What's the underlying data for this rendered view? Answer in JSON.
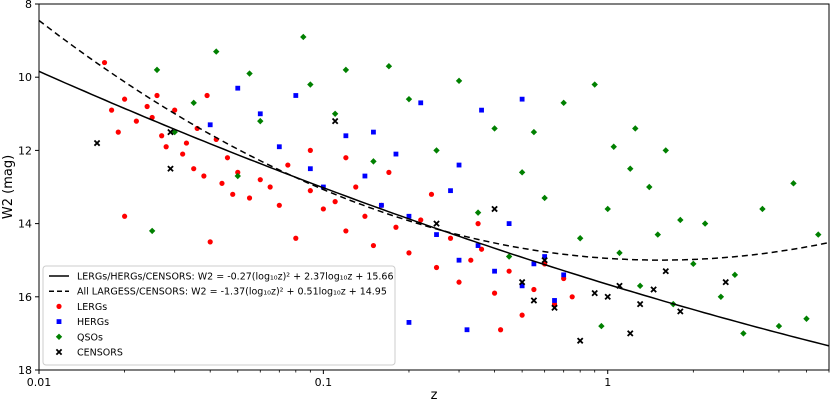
{
  "chart_data": {
    "type": "scatter",
    "title": "",
    "xlabel": "z",
    "ylabel": "W2 (mag)",
    "xscale": "log",
    "xlim": [
      0.01,
      6.0
    ],
    "ylim": [
      18,
      8
    ],
    "x_ticks": [
      {
        "value": 0.01,
        "label": "0.01"
      },
      {
        "value": 0.1,
        "label": "0.1"
      },
      {
        "value": 1,
        "label": "1"
      }
    ],
    "y_ticks": [
      {
        "value": 8,
        "label": "8"
      },
      {
        "value": 10,
        "label": "10"
      },
      {
        "value": 12,
        "label": "12"
      },
      {
        "value": 14,
        "label": "14"
      },
      {
        "value": 16,
        "label": "16"
      },
      {
        "value": 18,
        "label": "18"
      }
    ],
    "grid": false,
    "legend_position": "bottom-left",
    "fits": [
      {
        "name": "LERGs/HERGs/CENSORS: W2 = -0.27(log₁₀z)² + 2.37log₁₀z  + 15.66",
        "style": "solid",
        "a": -0.27,
        "b": 2.37,
        "c": 15.66,
        "color": "#000000"
      },
      {
        "name": "All LARGESS/CENSORS: W2 = -1.37(log₁₀z)² + 0.51log₁₀z  + 14.95",
        "style": "dashed",
        "a": -1.37,
        "b": 0.51,
        "c": 14.95,
        "color": "#000000"
      }
    ],
    "series": [
      {
        "name": "LERGs",
        "marker": "circle",
        "color": "#ff0000",
        "points": [
          [
            0.017,
            9.6
          ],
          [
            0.018,
            10.9
          ],
          [
            0.019,
            11.5
          ],
          [
            0.02,
            10.6
          ],
          [
            0.022,
            11.2
          ],
          [
            0.024,
            10.8
          ],
          [
            0.025,
            11.1
          ],
          [
            0.026,
            10.5
          ],
          [
            0.027,
            11.6
          ],
          [
            0.028,
            11.9
          ],
          [
            0.03,
            10.9
          ],
          [
            0.032,
            12.1
          ],
          [
            0.033,
            11.8
          ],
          [
            0.035,
            12.5
          ],
          [
            0.036,
            11.4
          ],
          [
            0.038,
            12.7
          ],
          [
            0.039,
            10.5
          ],
          [
            0.04,
            14.5
          ],
          [
            0.042,
            11.7
          ],
          [
            0.044,
            12.9
          ],
          [
            0.046,
            12.2
          ],
          [
            0.048,
            13.2
          ],
          [
            0.05,
            12.6
          ],
          [
            0.02,
            13.8
          ],
          [
            0.055,
            13.3
          ],
          [
            0.06,
            12.8
          ],
          [
            0.065,
            13.0
          ],
          [
            0.07,
            13.5
          ],
          [
            0.075,
            12.4
          ],
          [
            0.08,
            14.4
          ],
          [
            0.09,
            13.1
          ],
          [
            0.1,
            13.6
          ],
          [
            0.11,
            13.4
          ],
          [
            0.12,
            14.2
          ],
          [
            0.13,
            13.0
          ],
          [
            0.14,
            13.8
          ],
          [
            0.15,
            14.6
          ],
          [
            0.16,
            13.5
          ],
          [
            0.18,
            14.1
          ],
          [
            0.2,
            14.8
          ],
          [
            0.22,
            13.9
          ],
          [
            0.25,
            15.2
          ],
          [
            0.28,
            14.4
          ],
          [
            0.3,
            15.6
          ],
          [
            0.33,
            15.0
          ],
          [
            0.36,
            14.7
          ],
          [
            0.4,
            15.9
          ],
          [
            0.45,
            15.3
          ],
          [
            0.5,
            16.5
          ],
          [
            0.55,
            15.8
          ],
          [
            0.6,
            15.1
          ],
          [
            0.65,
            16.2
          ],
          [
            0.7,
            15.5
          ],
          [
            0.75,
            16.0
          ],
          [
            0.12,
            12.2
          ],
          [
            0.09,
            12.0
          ],
          [
            0.17,
            12.6
          ],
          [
            0.24,
            13.2
          ],
          [
            0.35,
            14.0
          ],
          [
            0.42,
            16.9
          ]
        ]
      },
      {
        "name": "HERGs",
        "marker": "square",
        "color": "#0000ff",
        "points": [
          [
            0.04,
            11.3
          ],
          [
            0.05,
            10.3
          ],
          [
            0.06,
            11.0
          ],
          [
            0.07,
            11.9
          ],
          [
            0.08,
            10.5
          ],
          [
            0.09,
            12.5
          ],
          [
            0.1,
            13.0
          ],
          [
            0.12,
            11.6
          ],
          [
            0.14,
            12.7
          ],
          [
            0.16,
            13.5
          ],
          [
            0.18,
            12.1
          ],
          [
            0.2,
            13.8
          ],
          [
            0.22,
            10.7
          ],
          [
            0.25,
            14.3
          ],
          [
            0.28,
            13.1
          ],
          [
            0.3,
            15.0
          ],
          [
            0.32,
            16.9
          ],
          [
            0.35,
            14.6
          ],
          [
            0.4,
            15.3
          ],
          [
            0.45,
            14.0
          ],
          [
            0.5,
            15.7
          ],
          [
            0.5,
            10.6
          ],
          [
            0.55,
            15.1
          ],
          [
            0.6,
            14.9
          ],
          [
            0.65,
            16.1
          ],
          [
            0.7,
            15.4
          ],
          [
            0.2,
            16.7
          ],
          [
            0.3,
            12.4
          ],
          [
            0.36,
            10.9
          ],
          [
            0.15,
            11.5
          ]
        ]
      },
      {
        "name": "QSOs",
        "marker": "diamond",
        "color": "#008000",
        "points": [
          [
            0.026,
            9.8
          ],
          [
            0.03,
            11.5
          ],
          [
            0.035,
            10.7
          ],
          [
            0.042,
            9.3
          ],
          [
            0.05,
            12.7
          ],
          [
            0.055,
            9.9
          ],
          [
            0.06,
            11.2
          ],
          [
            0.085,
            8.9
          ],
          [
            0.09,
            10.2
          ],
          [
            0.11,
            11.0
          ],
          [
            0.12,
            9.8
          ],
          [
            0.15,
            12.3
          ],
          [
            0.17,
            9.7
          ],
          [
            0.2,
            10.6
          ],
          [
            0.25,
            12.0
          ],
          [
            0.3,
            10.1
          ],
          [
            0.35,
            13.7
          ],
          [
            0.4,
            11.4
          ],
          [
            0.45,
            14.9
          ],
          [
            0.5,
            12.6
          ],
          [
            0.55,
            11.5
          ],
          [
            0.6,
            13.3
          ],
          [
            0.7,
            10.7
          ],
          [
            0.8,
            14.4
          ],
          [
            0.9,
            10.2
          ],
          [
            1.0,
            13.6
          ],
          [
            1.05,
            11.9
          ],
          [
            1.1,
            14.8
          ],
          [
            1.2,
            12.5
          ],
          [
            1.3,
            15.7
          ],
          [
            1.4,
            13.0
          ],
          [
            1.5,
            14.3
          ],
          [
            1.6,
            12.0
          ],
          [
            1.7,
            16.2
          ],
          [
            1.8,
            13.9
          ],
          [
            2.0,
            15.1
          ],
          [
            2.2,
            14.0
          ],
          [
            2.5,
            16.0
          ],
          [
            2.8,
            15.4
          ],
          [
            3.0,
            17.0
          ],
          [
            3.5,
            13.6
          ],
          [
            4.0,
            16.8
          ],
          [
            4.5,
            12.9
          ],
          [
            5.0,
            16.6
          ],
          [
            5.5,
            14.3
          ],
          [
            0.025,
            14.2
          ],
          [
            0.95,
            16.8
          ],
          [
            1.25,
            11.4
          ]
        ]
      },
      {
        "name": "CENSORS",
        "marker": "x",
        "color": "#000000",
        "points": [
          [
            0.016,
            11.8
          ],
          [
            0.029,
            11.5
          ],
          [
            0.029,
            12.5
          ],
          [
            0.11,
            11.2
          ],
          [
            0.25,
            14.0
          ],
          [
            0.4,
            13.6
          ],
          [
            0.5,
            15.6
          ],
          [
            0.55,
            16.1
          ],
          [
            0.65,
            16.3
          ],
          [
            0.8,
            17.2
          ],
          [
            0.9,
            15.9
          ],
          [
            1.0,
            16.0
          ],
          [
            1.1,
            15.7
          ],
          [
            1.2,
            17.0
          ],
          [
            1.3,
            16.2
          ],
          [
            1.45,
            15.8
          ],
          [
            1.6,
            15.3
          ],
          [
            1.8,
            16.4
          ],
          [
            2.6,
            15.6
          ],
          [
            0.6,
            15.0
          ]
        ]
      }
    ]
  }
}
